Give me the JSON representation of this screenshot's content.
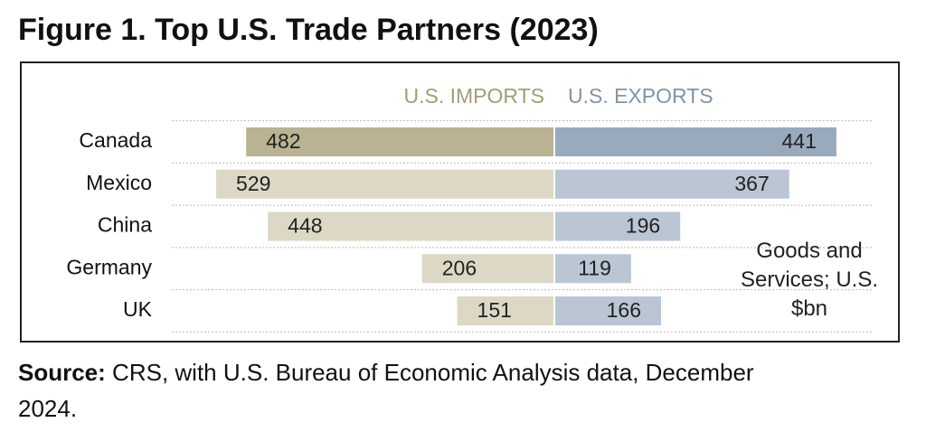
{
  "chart_data": {
    "type": "butterfly-bar",
    "title": "Figure 1. Top U.S. Trade Partners (2023)",
    "categories": [
      "Canada",
      "Mexico",
      "China",
      "Germany",
      "UK"
    ],
    "series": [
      {
        "name": "U.S. IMPORTS",
        "color": "#a39d74",
        "colors": [
          "#b9b293",
          "#dcd8c5",
          "#dcd8c5",
          "#dcd8c5",
          "#dcd8c5"
        ],
        "values": [
          482,
          529,
          448,
          206,
          151
        ]
      },
      {
        "name": "U.S. EXPORTS",
        "color": "#8393a8",
        "colors": [
          "#9aaabd",
          "#bac6d4",
          "#bac6d4",
          "#bac6d4",
          "#bac6d4"
        ],
        "values": [
          441,
          367,
          196,
          119,
          166
        ]
      }
    ],
    "note": "Goods and Services; U.S. $bn",
    "source_label": "Source:",
    "source_text": "CRS, with U.S. Bureau of Economic Analysis data, December 2024."
  }
}
